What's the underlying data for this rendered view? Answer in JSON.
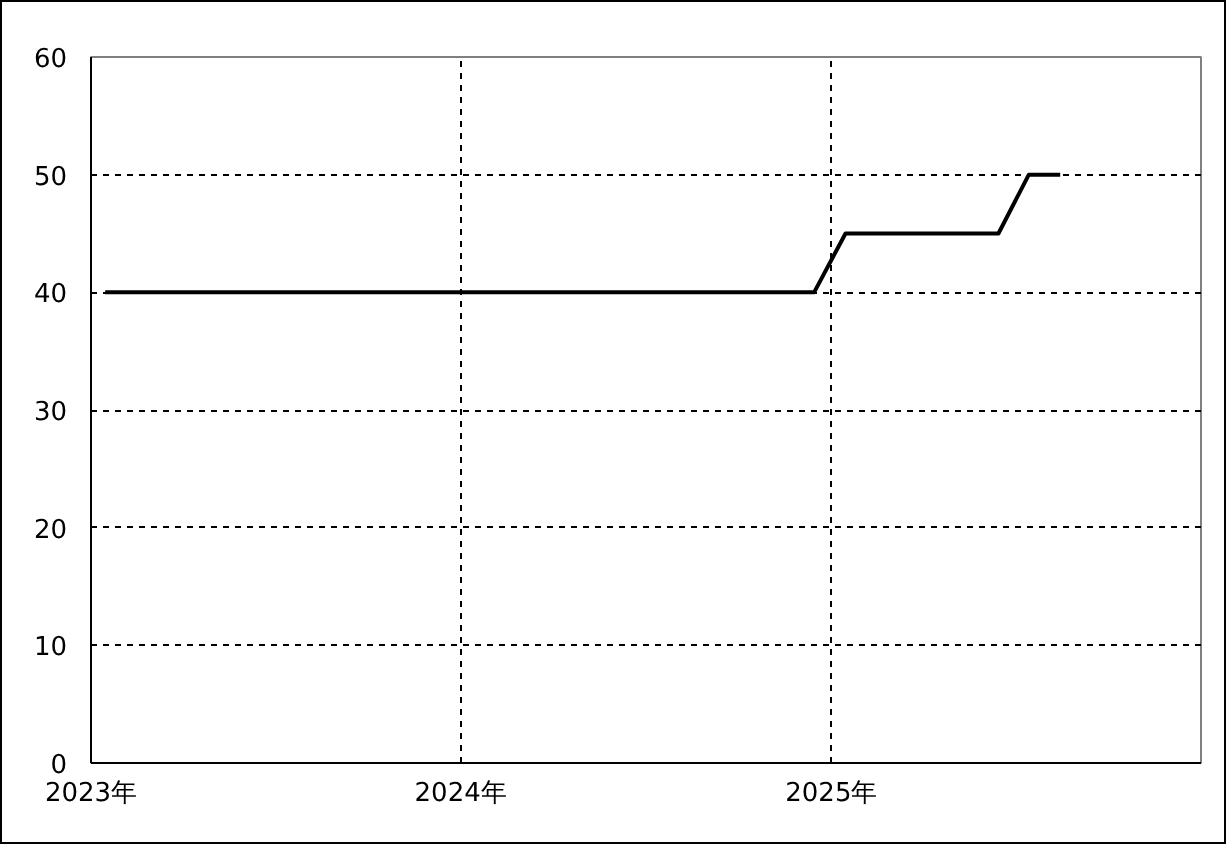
{
  "chart_data": {
    "type": "line",
    "x": [
      "2023-01-15",
      "2024-12-15",
      "2025-01-15",
      "2025-06-15",
      "2025-07-15",
      "2025-08-15"
    ],
    "series": [
      {
        "color": "#000000",
        "values": [
          40,
          40,
          45,
          45,
          50,
          50
        ]
      }
    ],
    "xlim": [
      "2023",
      "2026"
    ],
    "xticks": [
      {
        "value": "2023",
        "label": "2023年"
      },
      {
        "value": "2024",
        "label": "2024年"
      },
      {
        "value": "2025",
        "label": "2025年"
      }
    ],
    "ylim": [
      0,
      60
    ],
    "yticks": [
      0,
      10,
      20,
      30,
      40,
      50,
      60
    ],
    "grid": true,
    "line_style": "solid"
  }
}
